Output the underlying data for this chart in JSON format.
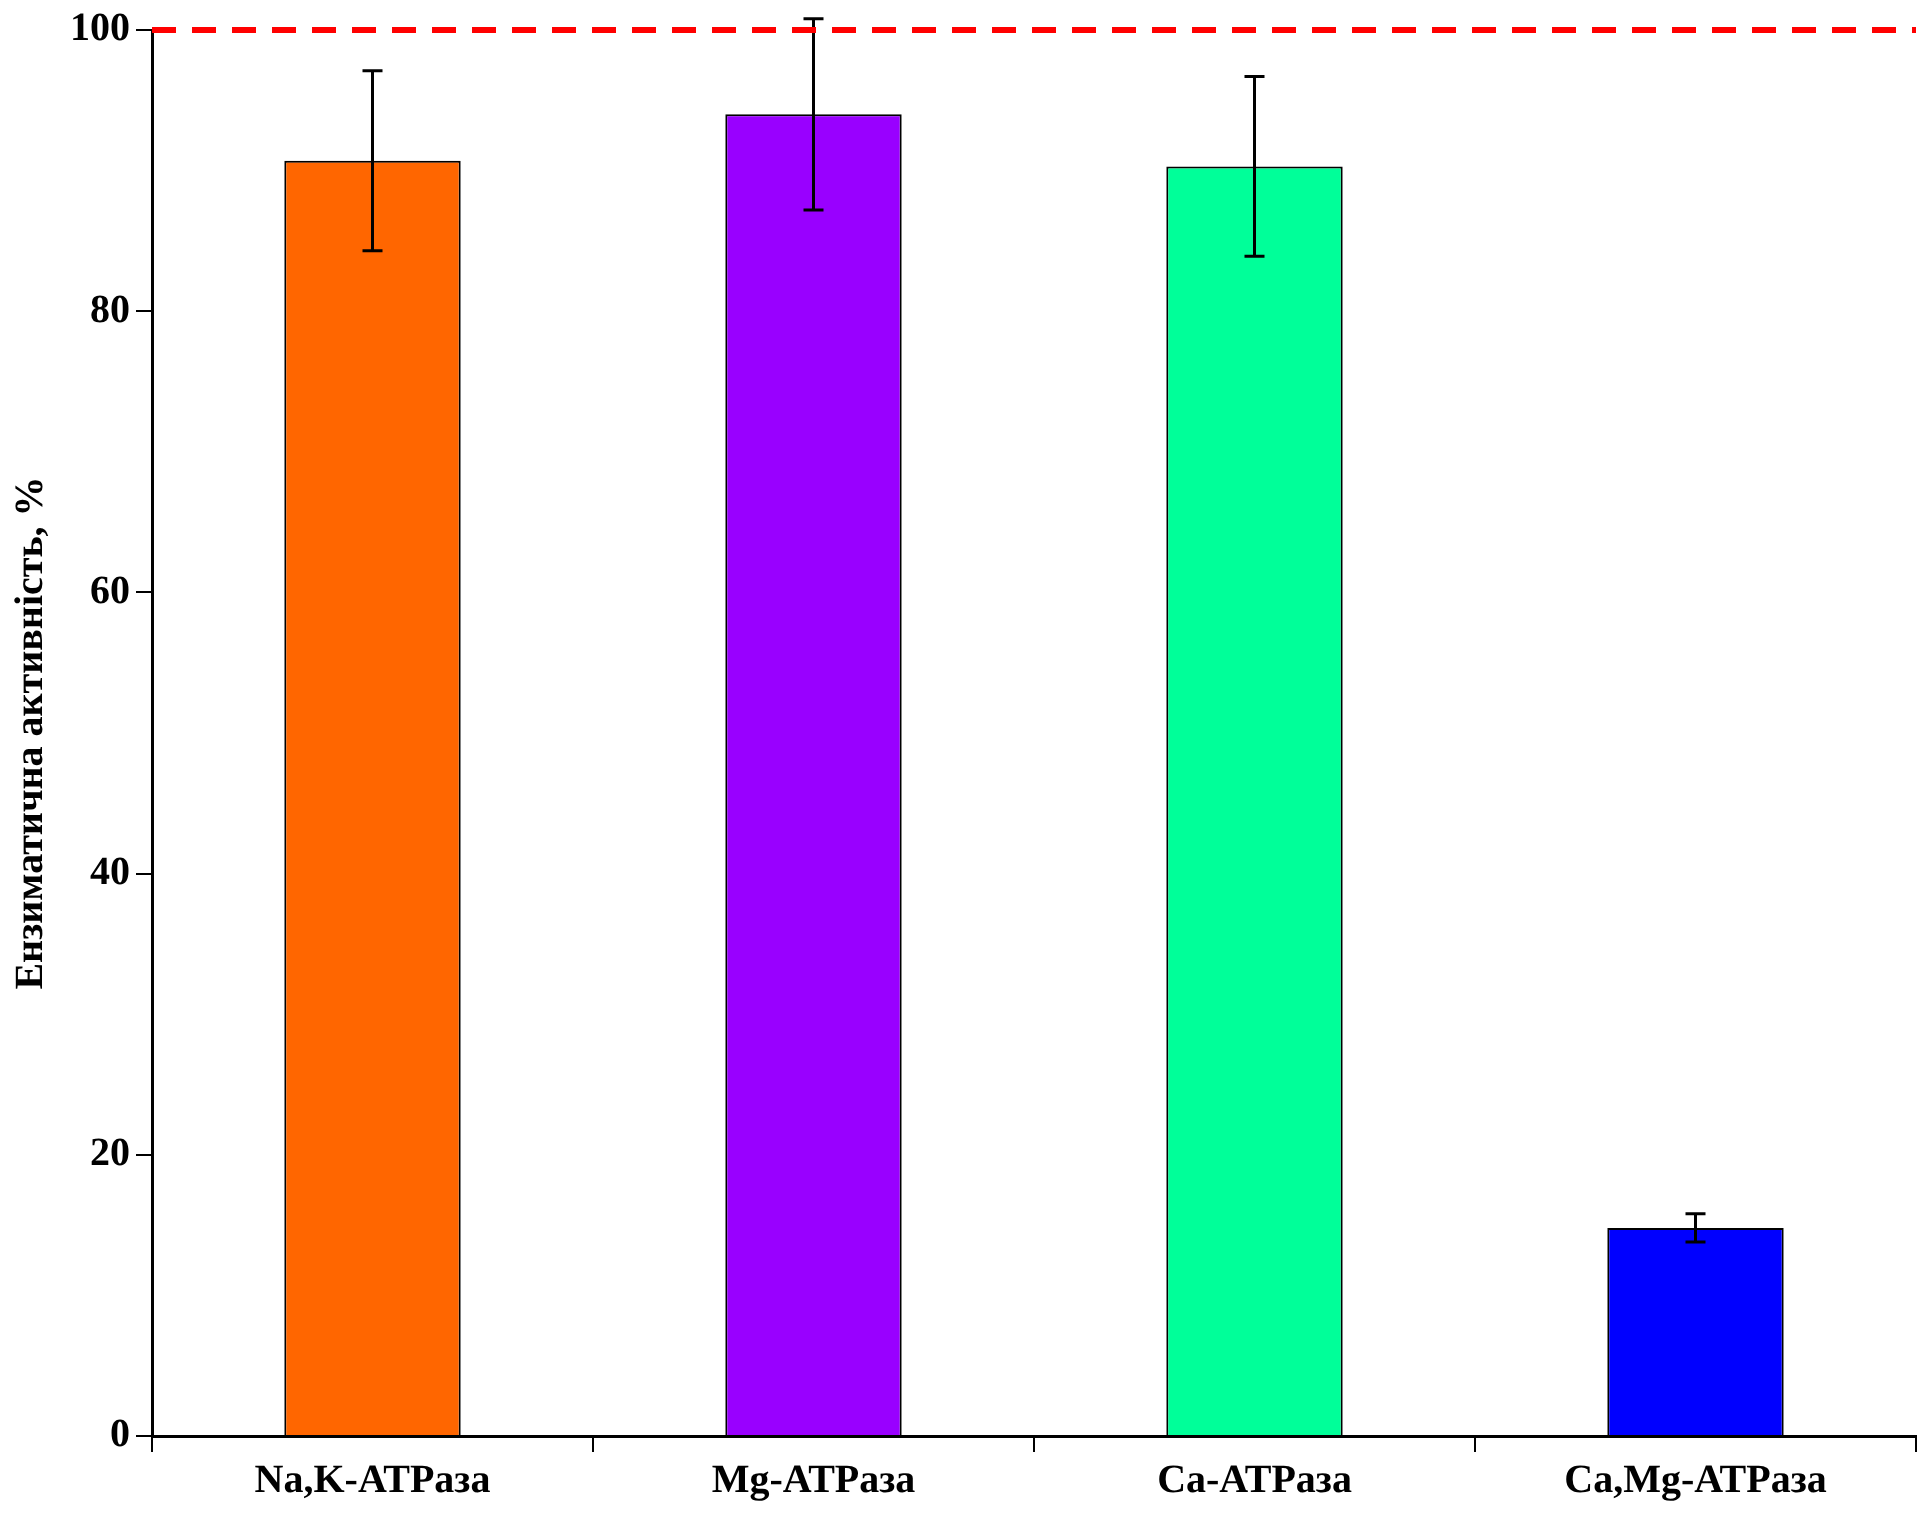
{
  "chart_data": {
    "type": "bar",
    "ylabel": "Ензиматична активність, %",
    "categories": [
      "Na,K-АТРаза",
      "Mg-АТРаза",
      "Ca-АТРаза",
      "Ca,Mg-АТРаза"
    ],
    "values": [
      90.7,
      94.0,
      90.3,
      14.8
    ],
    "colors": [
      "#ff6600",
      "#9900ff",
      "#00ff99",
      "#0000ff"
    ],
    "errors": [
      6.4,
      6.8,
      6.4,
      1.0
    ],
    "ylim": [
      0,
      100
    ],
    "yticks": [
      0,
      20,
      40,
      60,
      80,
      100
    ],
    "ref_lines": [
      {
        "axis": "y",
        "value": 100,
        "color": "#ff0000",
        "line_style": "dashed"
      }
    ],
    "legend": false
  }
}
